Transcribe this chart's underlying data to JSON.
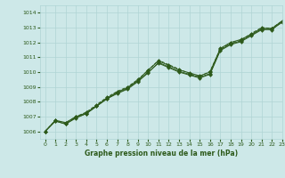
{
  "bg_color": "#cde8e8",
  "grid_color": "#b0d4d4",
  "line_color": "#2d5a1b",
  "title": "Graphe pression niveau de la mer (hPa)",
  "xlim": [
    -0.5,
    23
  ],
  "ylim": [
    1005.5,
    1014.5
  ],
  "yticks": [
    1006,
    1007,
    1008,
    1009,
    1010,
    1011,
    1012,
    1013,
    1014
  ],
  "xticks": [
    0,
    1,
    2,
    3,
    4,
    5,
    6,
    7,
    8,
    9,
    10,
    11,
    12,
    13,
    14,
    15,
    16,
    17,
    18,
    19,
    20,
    21,
    22,
    23
  ],
  "series1_x": [
    0,
    1,
    2,
    3,
    4,
    5,
    6,
    7,
    8,
    9,
    10,
    11,
    12,
    13,
    14,
    15,
    16,
    17,
    18,
    19,
    20,
    21,
    22,
    23
  ],
  "series1_y": [
    1006.0,
    1006.75,
    1006.6,
    1007.0,
    1007.25,
    1007.75,
    1008.25,
    1008.65,
    1008.95,
    1009.45,
    1010.15,
    1010.75,
    1010.45,
    1010.15,
    1009.95,
    1009.75,
    1010.0,
    1011.6,
    1012.0,
    1012.2,
    1012.55,
    1012.95,
    1012.95,
    1013.45
  ],
  "series2_x": [
    0,
    1,
    2,
    3,
    4,
    5,
    6,
    7,
    8,
    9,
    10,
    11,
    12,
    13,
    14,
    15,
    16,
    17,
    18,
    19,
    20,
    21,
    22,
    23
  ],
  "series2_y": [
    1006.0,
    1006.7,
    1006.5,
    1006.95,
    1007.2,
    1007.7,
    1008.2,
    1008.6,
    1008.9,
    1009.4,
    1010.0,
    1010.6,
    1010.3,
    1010.0,
    1009.8,
    1009.6,
    1009.85,
    1011.45,
    1011.85,
    1012.05,
    1012.45,
    1012.85,
    1012.9,
    1013.35
  ],
  "series3_x": [
    0,
    1,
    2,
    3,
    4,
    5,
    6,
    7,
    8,
    9,
    10,
    11,
    12,
    13,
    14,
    15,
    16,
    17,
    18,
    19,
    20,
    21,
    22,
    23
  ],
  "series3_y": [
    1006.0,
    1006.7,
    1006.5,
    1006.9,
    1007.2,
    1007.7,
    1008.2,
    1008.55,
    1008.85,
    1009.35,
    1009.95,
    1010.65,
    1010.35,
    1010.05,
    1009.85,
    1009.65,
    1009.9,
    1011.5,
    1011.9,
    1012.1,
    1012.5,
    1012.9,
    1012.85,
    1013.4
  ],
  "series4_x": [
    0,
    1,
    2,
    3,
    4,
    5,
    6,
    7,
    8,
    9,
    10,
    11,
    12,
    13,
    14,
    15,
    16,
    17,
    18,
    19,
    20,
    21,
    22,
    23
  ],
  "series4_y": [
    1006.0,
    1006.75,
    1006.55,
    1007.0,
    1007.3,
    1007.8,
    1008.3,
    1008.7,
    1009.0,
    1009.5,
    1010.1,
    1010.8,
    1010.5,
    1010.2,
    1009.9,
    1009.7,
    1010.05,
    1011.55,
    1011.95,
    1012.15,
    1012.6,
    1013.0,
    1012.95,
    1013.45
  ]
}
